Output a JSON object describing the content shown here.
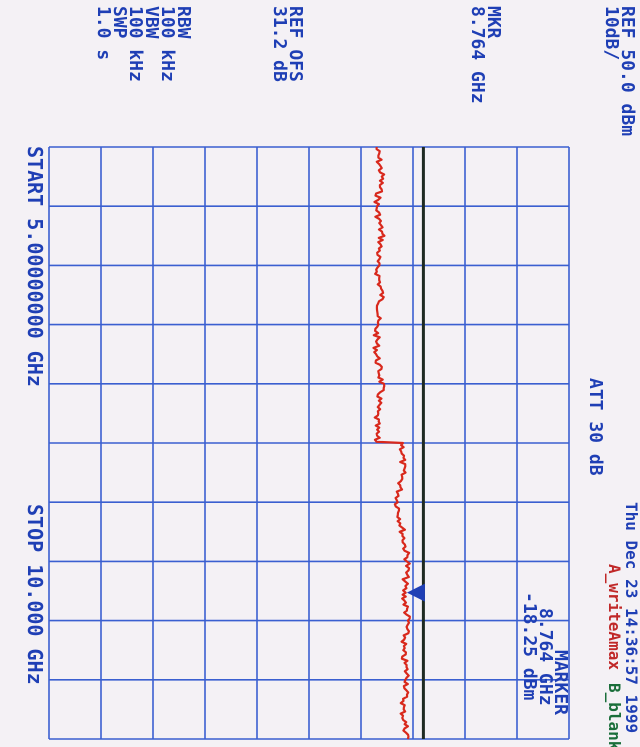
{
  "header": {
    "ref_level": "REF 50.0 dBm",
    "scale": "10dB/",
    "mkr_label": "MKR",
    "mkr_freq": "8.764 GHz",
    "ref_ofs_label": "REF OFS",
    "ref_ofs_value": "31.2 dB",
    "rbw_label": "RBW",
    "rbw_value": "100 kHz",
    "vbw_label": "VBW",
    "vbw_value": "100 kHz",
    "swp_label": "SWP",
    "swp_value": "1.0 s",
    "att": "ATT 30 dB",
    "datetime": "Thu Dec 23 14:36:57 1999",
    "trace_a": "A_writeAmax",
    "trace_b": "B_blank",
    "marker_title": "MARKER",
    "marker_freq": "8.764 GHz",
    "marker_level": "-18.25 dBm",
    "start": "START 5.00000000 GHz",
    "stop": "STOP 10.000 GHz"
  },
  "colors": {
    "grid": "#3a5fd0",
    "text": "#1f3fb5",
    "trace": "#d8281c",
    "baseline": "#1e2a22",
    "marker": "#1f3fb5",
    "trace_a_label": "#c02828",
    "trace_b_label": "#1a6e3a"
  },
  "chart_data": {
    "type": "line",
    "x_unit": "GHz",
    "y_unit": "dBm",
    "xlim": [
      5.0,
      10.0
    ],
    "ylim": [
      -50,
      50
    ],
    "y_per_division": 10,
    "series": [
      {
        "name": "A_writeAmax",
        "x": [
          5.0,
          5.25,
          5.5,
          5.75,
          6.0,
          6.25,
          6.5,
          6.75,
          7.0,
          7.25,
          7.49,
          7.5,
          7.75,
          8.0,
          8.25,
          8.5,
          8.764,
          9.0,
          9.25,
          9.5,
          9.75,
          10.0
        ],
        "y": [
          -13,
          -14,
          -13,
          -14,
          -13,
          -14,
          -13,
          -13,
          -14,
          -13,
          -13,
          -18,
          -18,
          -17,
          -18,
          -19,
          -18.25,
          -19,
          -18,
          -19,
          -18,
          -19
        ]
      }
    ],
    "marker": {
      "x": 8.764,
      "y": -18.25
    },
    "reference_line_y": -22
  }
}
